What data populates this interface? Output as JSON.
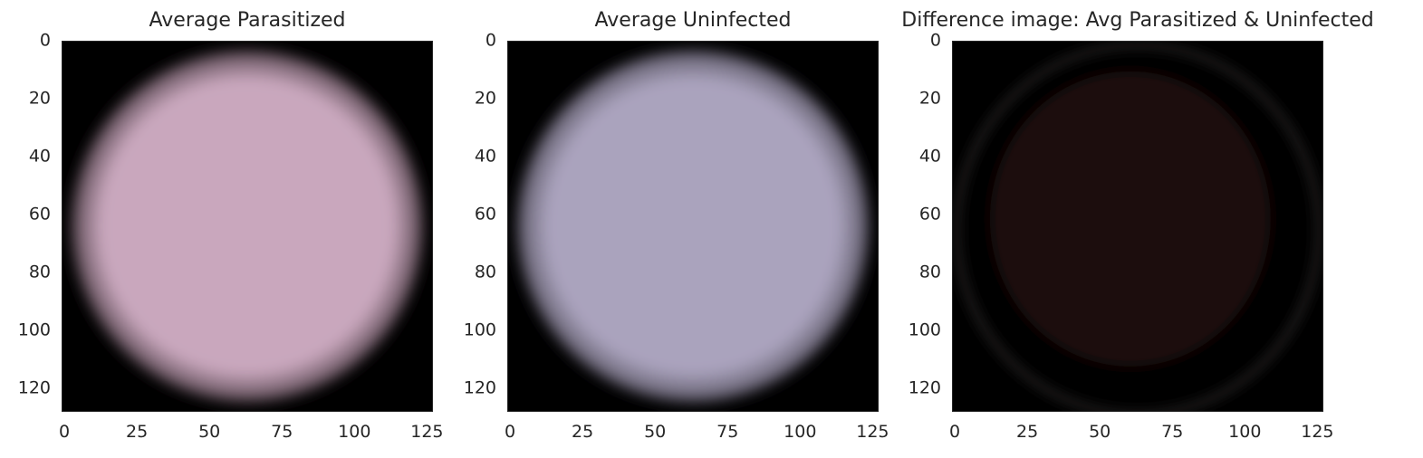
{
  "panels": [
    {
      "title": "Average Parasitized",
      "image_description": "blurred round blood-cell average, pink",
      "cell_color": "#c9a7bd",
      "edge_color": "#6e5a66"
    },
    {
      "title": "Average Uninfected",
      "image_description": "blurred round blood-cell average, lavender",
      "cell_color": "#aaa3bd",
      "edge_color": "#6b6677"
    },
    {
      "title": "Difference image: Avg Parasitized & Uninfected",
      "image_description": "dark difference image with faint reddish cell and gray rim",
      "cell_color": "#1a0806",
      "edge_color": "#3a3435"
    }
  ],
  "axes": {
    "y_ticks": [
      "0",
      "20",
      "40",
      "60",
      "80",
      "100",
      "120"
    ],
    "x_ticks": [
      "0",
      "25",
      "50",
      "75",
      "100",
      "125"
    ],
    "y_values": [
      0,
      20,
      40,
      60,
      80,
      100,
      120
    ],
    "x_values": [
      0,
      25,
      50,
      75,
      100,
      125
    ],
    "range": [
      0,
      128
    ]
  }
}
